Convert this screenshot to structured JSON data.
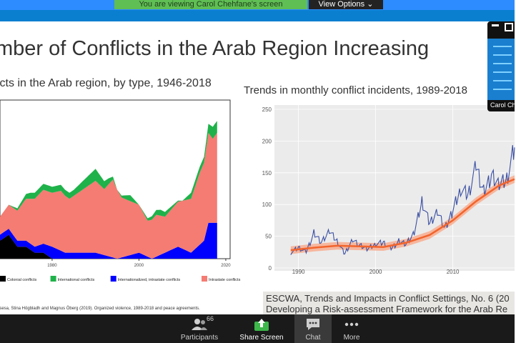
{
  "banner": {
    "viewing_text": "You are viewing Carol Chehfane's screen",
    "view_options": "View Options"
  },
  "slide": {
    "title": "mber of Conflicts in the Arab Region Increasing",
    "left_subtitle": "icts in the Arab region, by type, 1946-2018",
    "right_subtitle": "Trends in monthly conflict incidents, 1989-2018",
    "left_citation": "ersesa, Stina Högbladh and Magnus Öberg (2019). Organized violence, 1989-2018 and peace agreements.",
    "right_citation": "ESCWA, Trends and Impacts in Conflict Settings, No. 6 (20",
    "right_citation_2": "Developing a Risk-assessment Framework for the Arab Re"
  },
  "pip": {
    "name": "Carol Ch"
  },
  "toolbar": {
    "participants_label": "Participants",
    "participants_count": "66",
    "share_label": "Share Screen",
    "chat_label": "Chat",
    "more_label": "More"
  },
  "chart_data": [
    {
      "type": "area",
      "title": "icts in the Arab region, by type, 1946-2018",
      "xlim": [
        1968,
        2021
      ],
      "x_ticks": [
        1980,
        2000,
        2020
      ],
      "x_tick_labels": [
        "1980",
        "2000",
        "2020"
      ],
      "legend": "bottom",
      "colors": {
        "colonial": "#000000",
        "international": "#1fb24a",
        "internationalized": "#0000ff",
        "intrastate": "#f47c73"
      },
      "series": [
        {
          "name": "Colonial conflicts",
          "x": [
            1968,
            1970,
            1972,
            1974,
            1976,
            1978,
            1980,
            1982,
            1984
          ],
          "values": [
            3,
            4,
            2,
            2,
            1,
            1,
            0,
            0,
            0
          ]
        },
        {
          "name": "International conflicts",
          "x": [
            1968,
            1970,
            1975,
            1980,
            1985,
            1990,
            1993,
            1995,
            1998,
            2000,
            2005,
            2010,
            2012,
            2015,
            2017
          ],
          "values": [
            0,
            0,
            1,
            1,
            1,
            2,
            1,
            0,
            1,
            0,
            1,
            0,
            1,
            1,
            2
          ]
        },
        {
          "name": "Internationalized, intrastate conflicts",
          "x": [
            1968,
            1972,
            1976,
            1980,
            1983,
            1986,
            1990,
            1995,
            2000,
            2003,
            2006,
            2009,
            2012,
            2015,
            2016,
            2018
          ],
          "values": [
            1,
            1,
            1,
            2,
            1,
            1,
            1,
            0,
            1,
            0,
            1,
            2,
            1,
            3,
            6,
            6
          ]
        },
        {
          "name": "Intrastate conflicts",
          "x": [
            1968,
            1970,
            1972,
            1974,
            1976,
            1978,
            1980,
            1982,
            1984,
            1986,
            1988,
            1990,
            1992,
            1994,
            1996,
            1998,
            2000,
            2002,
            2004,
            2006,
            2008,
            2010,
            2012,
            2014,
            2015,
            2016,
            2017,
            2018
          ],
          "values": [
            3,
            4,
            5,
            7,
            8,
            9,
            9,
            10,
            9,
            10,
            11,
            12,
            11,
            13,
            10,
            9,
            8,
            6,
            7,
            6,
            7,
            8,
            9,
            12,
            13,
            15,
            14,
            15
          ]
        }
      ]
    },
    {
      "type": "line",
      "title": "Trends in monthly conflict incidents, 1989-2018",
      "ylim": [
        0,
        250
      ],
      "xlim": [
        1988,
        2018
      ],
      "y_ticks": [
        0,
        50,
        100,
        150,
        200,
        250
      ],
      "x_ticks": [
        1990,
        2000,
        2010
      ],
      "series": [
        {
          "name": "",
          "type": "line",
          "x": [
            1989,
            1990,
            1991,
            1992,
            1993,
            1994,
            1995,
            1996,
            1997,
            1998,
            1999,
            2000,
            2001,
            2002,
            2003,
            2004,
            2005,
            2006,
            2007,
            2008,
            2009,
            2010,
            2011,
            2012,
            2013,
            2014,
            2015,
            2016,
            2017,
            2018
          ],
          "values": [
            24,
            32,
            25,
            55,
            40,
            58,
            42,
            22,
            45,
            35,
            30,
            38,
            40,
            30,
            42,
            38,
            55,
            105,
            70,
            90,
            62,
            90,
            125,
            115,
            160,
            120,
            145,
            130,
            140,
            190
          ]
        },
        {
          "name": "",
          "type": "trend",
          "x": [
            1989,
            1992,
            1995,
            1998,
            2001,
            2004,
            2007,
            2010,
            2013,
            2016,
            2018
          ],
          "values": [
            28,
            32,
            35,
            34,
            33,
            40,
            52,
            75,
            105,
            130,
            140
          ]
        }
      ]
    }
  ]
}
